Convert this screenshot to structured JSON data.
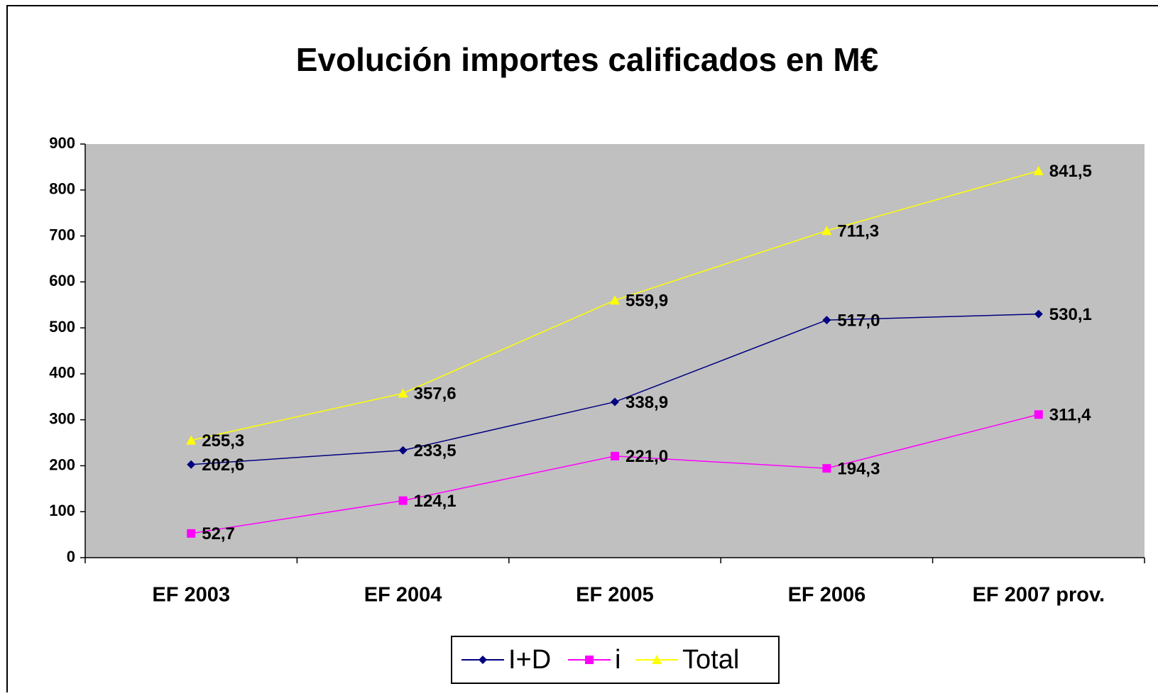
{
  "chart_data": {
    "type": "line",
    "title": "Evolución importes calificados en M€",
    "categories": [
      "EF 2003",
      "EF 2004",
      "EF 2005",
      "EF 2006",
      "EF 2007 prov."
    ],
    "series": [
      {
        "name": "I+D",
        "color": "#000080",
        "marker": "diamond",
        "values": [
          202.6,
          233.5,
          338.9,
          517.0,
          530.1
        ],
        "value_labels": [
          "202,6",
          "233,5",
          "338,9",
          "517,0",
          "530,1"
        ]
      },
      {
        "name": "i",
        "color": "#ff00ff",
        "marker": "square",
        "values": [
          52.7,
          124.1,
          221.0,
          194.3,
          311.4
        ],
        "value_labels": [
          "52,7",
          "124,1",
          "221,0",
          "194,3",
          "311,4"
        ]
      },
      {
        "name": "Total",
        "color": "#ffff00",
        "marker": "triangle",
        "values": [
          255.3,
          357.6,
          559.9,
          711.3,
          841.5
        ],
        "value_labels": [
          "255,3",
          "357,6",
          "559,9",
          "711,3",
          "841,5"
        ]
      }
    ],
    "ylim": [
      0,
      900
    ],
    "yticks": [
      0,
      100,
      200,
      300,
      400,
      500,
      600,
      700,
      800,
      900
    ],
    "grid": false,
    "legend": "bottom",
    "plot_background": "#c0c0c0"
  }
}
